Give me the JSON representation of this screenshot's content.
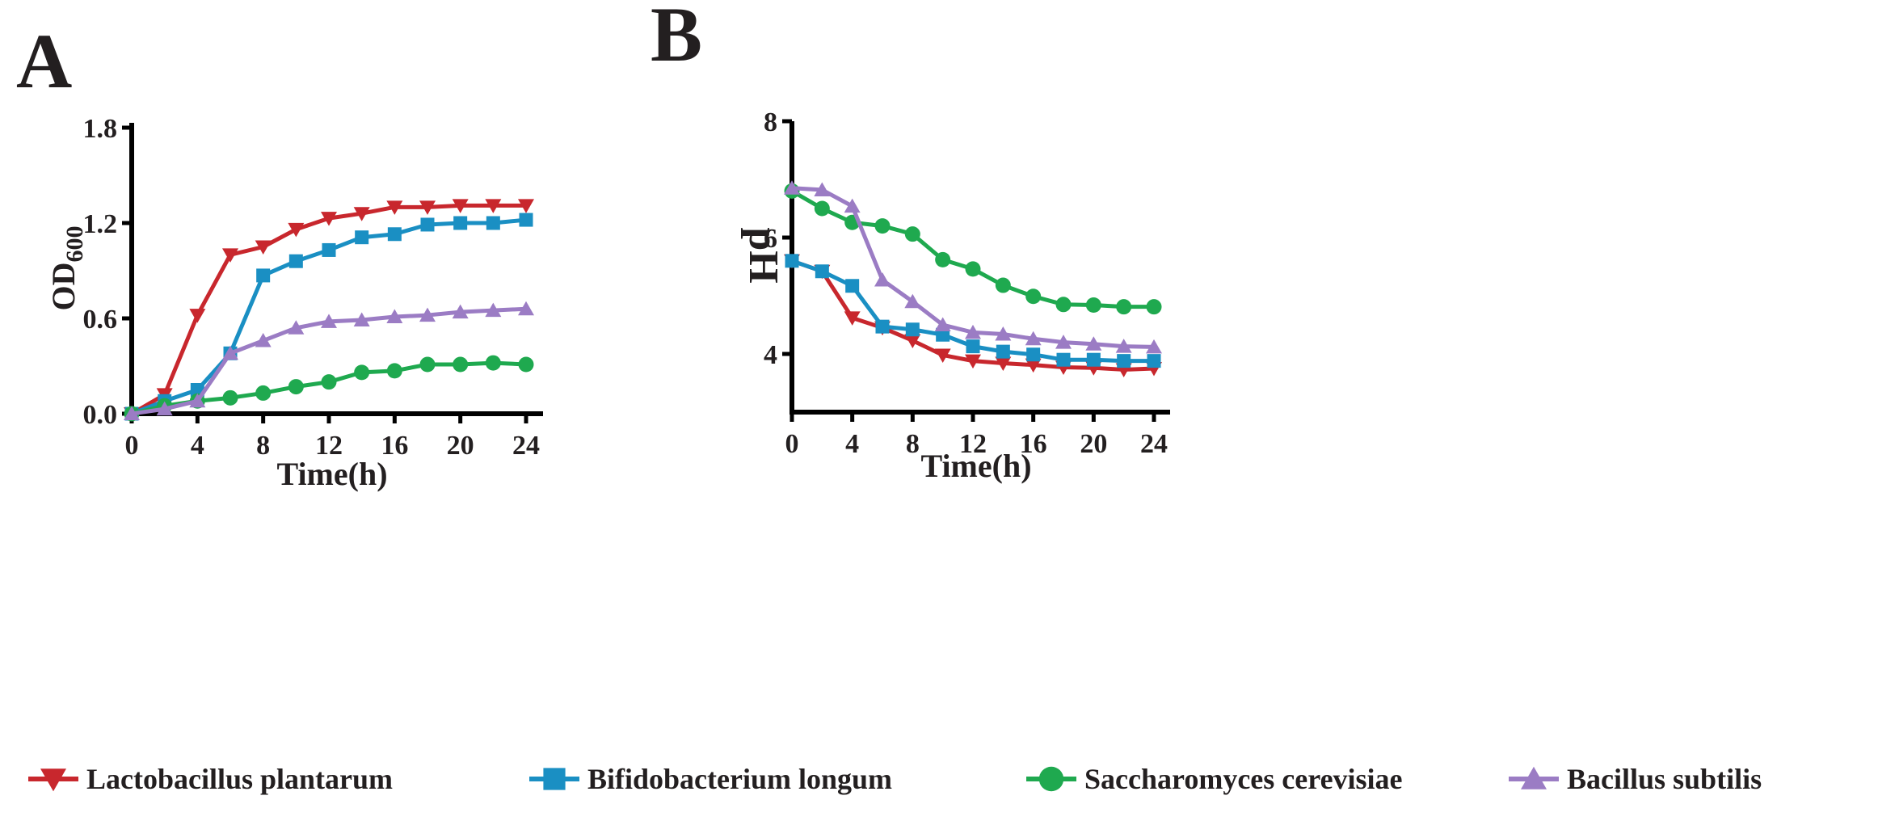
{
  "chart_data": [
    {
      "panel": "A",
      "type": "line",
      "xlabel": "Time(h)",
      "ylabel_main": "OD",
      "ylabel_sub": "600",
      "x_ticks": [
        "0",
        "4",
        "8",
        "12",
        "16",
        "20",
        "24"
      ],
      "y_ticks": [
        "0.0",
        "0.6",
        "1.2",
        "1.8"
      ],
      "xlim": [
        0,
        24
      ],
      "ylim": [
        0,
        1.8
      ],
      "x": [
        0,
        2,
        4,
        6,
        8,
        10,
        12,
        14,
        16,
        18,
        20,
        22,
        24
      ],
      "series": [
        {
          "name": "Lactobacillus plantarum",
          "color": "#c8272d",
          "marker": "triangle-down",
          "values": [
            0.0,
            0.12,
            0.62,
            1.0,
            1.05,
            1.16,
            1.23,
            1.26,
            1.3,
            1.3,
            1.31,
            1.31,
            1.31
          ]
        },
        {
          "name": "Bifidobacterium longum",
          "color": "#1a8fc3",
          "marker": "square",
          "values": [
            0.0,
            0.08,
            0.15,
            0.38,
            0.87,
            0.96,
            1.03,
            1.11,
            1.13,
            1.19,
            1.2,
            1.2,
            1.22
          ]
        },
        {
          "name": "Saccharomyces cerevisiae",
          "color": "#1fa94f",
          "marker": "circle",
          "values": [
            0.0,
            0.05,
            0.08,
            0.1,
            0.13,
            0.17,
            0.2,
            0.26,
            0.27,
            0.31,
            0.31,
            0.32,
            0.31
          ]
        },
        {
          "name": "Bacillus subtilis",
          "color": "#9b7cc4",
          "marker": "triangle-up",
          "values": [
            0.0,
            0.03,
            0.08,
            0.38,
            0.46,
            0.54,
            0.58,
            0.59,
            0.61,
            0.62,
            0.64,
            0.65,
            0.66
          ]
        }
      ]
    },
    {
      "panel": "B",
      "type": "line",
      "xlabel": "Time(h)",
      "ylabel_main": "pH",
      "x_ticks": [
        "0",
        "4",
        "8",
        "12",
        "16",
        "20",
        "24"
      ],
      "y_ticks": [
        "4",
        "6",
        "8"
      ],
      "xlim": [
        0,
        24
      ],
      "ylim": [
        3,
        8
      ],
      "x": [
        0,
        2,
        4,
        6,
        8,
        10,
        12,
        14,
        16,
        18,
        20,
        22,
        24
      ],
      "series": [
        {
          "name": "Lactobacillus plantarum",
          "color": "#c8272d",
          "marker": "triangle-down",
          "values": [
            5.6,
            5.42,
            4.62,
            4.45,
            4.23,
            3.98,
            3.88,
            3.84,
            3.81,
            3.77,
            3.76,
            3.73,
            3.75
          ]
        },
        {
          "name": "Bifidobacterium longum",
          "color": "#1a8fc3",
          "marker": "square",
          "values": [
            5.6,
            5.42,
            5.17,
            4.47,
            4.42,
            4.33,
            4.13,
            4.04,
            3.99,
            3.9,
            3.9,
            3.88,
            3.88
          ]
        },
        {
          "name": "Saccharomyces cerevisiae",
          "color": "#1fa94f",
          "marker": "circle",
          "values": [
            6.8,
            6.5,
            6.26,
            6.2,
            6.06,
            5.62,
            5.46,
            5.18,
            4.99,
            4.85,
            4.84,
            4.81,
            4.81
          ]
        },
        {
          "name": "Bacillus subtilis",
          "color": "#9b7cc4",
          "marker": "triangle-up",
          "values": [
            6.85,
            6.82,
            6.54,
            5.27,
            4.9,
            4.5,
            4.37,
            4.34,
            4.26,
            4.2,
            4.17,
            4.13,
            4.12
          ]
        }
      ]
    }
  ],
  "legend": [
    {
      "name": "Lactobacillus plantarum",
      "color": "#c8272d",
      "marker": "triangle-down"
    },
    {
      "name": "Bifidobacterium longum",
      "color": "#1a8fc3",
      "marker": "square"
    },
    {
      "name": "Saccharomyces cerevisiae",
      "color": "#1fa94f",
      "marker": "circle"
    },
    {
      "name": "Bacillus subtilis",
      "color": "#9b7cc4",
      "marker": "triangle-up"
    }
  ]
}
